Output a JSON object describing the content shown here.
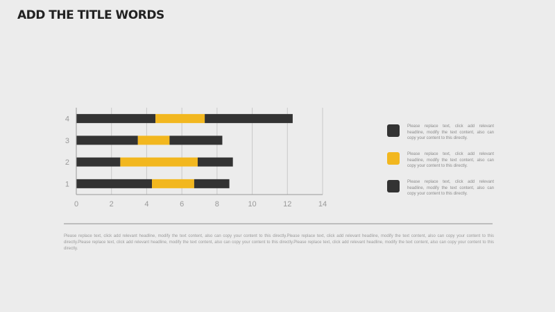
{
  "title": "ADD THE TITLE WORDS",
  "colors": {
    "dark": "#333333",
    "accent": "#f2b71f",
    "axis": "#999999",
    "grid": "#c8c8c8"
  },
  "chart_data": {
    "type": "bar",
    "orientation": "horizontal",
    "stacked": true,
    "categories": [
      "1",
      "2",
      "3",
      "4"
    ],
    "series": [
      {
        "values": [
          4.3,
          2.5,
          3.5,
          4.5
        ],
        "color": "#333333"
      },
      {
        "values": [
          2.4,
          4.4,
          1.8,
          2.8
        ],
        "color": "#f2b71f"
      },
      {
        "values": [
          2.0,
          2.0,
          3.0,
          5.0
        ],
        "color": "#333333"
      }
    ],
    "xlim": [
      0,
      14
    ],
    "xticks": [
      0,
      2,
      4,
      6,
      8,
      10,
      12,
      14
    ],
    "grid": "vertical-major"
  },
  "legend": [
    {
      "color": "#333333",
      "text": "Please replace text, click add relevant headline, modify the text content, also can copy your content to this directly."
    },
    {
      "color": "#f2b71f",
      "text": "Please replace text, click add relevant headline, modify the text content, also can copy your content to this directly."
    },
    {
      "color": "#333333",
      "text": "Please replace text, click add relevant headline, modify the text content, also can copy your content to this directly."
    }
  ],
  "body_text": "Please replace text, click add relevant headline, modify the text content, also can copy your content to this directly.Please replace text, click add relevant headline, modify the text content, also can copy your content to this directly.Please replace text, click add relevant headline, modify the text content, also can copy your content to this directly.Please replace text, click add relevant headline, modify the text content, also can copy your content to this directly."
}
